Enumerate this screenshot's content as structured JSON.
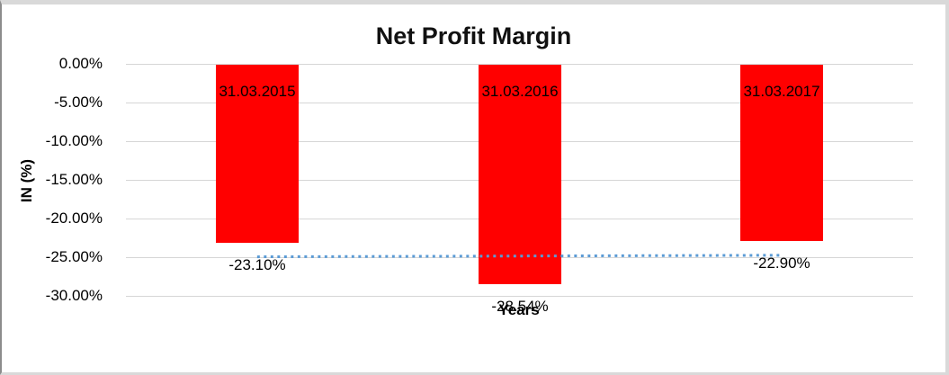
{
  "chart_data": {
    "type": "bar",
    "title": "Net Profit Margin",
    "xlabel": "Years",
    "ylabel": "IN (%)",
    "categories": [
      "31.03.2015",
      "31.03.2016",
      "31.03.2017"
    ],
    "values": [
      -23.1,
      -28.54,
      -22.9
    ],
    "value_labels": [
      "-23.10%",
      "-28.54%",
      "-22.90%"
    ],
    "category_label_position": "inside-top-of-bar",
    "value_label_position": "below-bar",
    "ylim": [
      -30,
      0
    ],
    "yticks": {
      "values": [
        0,
        -5,
        -10,
        -15,
        -20,
        -25,
        -30
      ],
      "labels": [
        "0.00%",
        "-5.00%",
        "-10.00%",
        "-15.00%",
        "-20.00%",
        "-25.00%",
        "-30.00%"
      ]
    },
    "grid": true,
    "legend": "none",
    "bar_color": "#FF0000",
    "gridline_color": "#D6D6D6",
    "text_color": "#000000",
    "trendline": {
      "type": "linear",
      "style": "dotted",
      "color": "#5B9BD5",
      "start_value": -24.95,
      "end_value": -24.75
    }
  }
}
